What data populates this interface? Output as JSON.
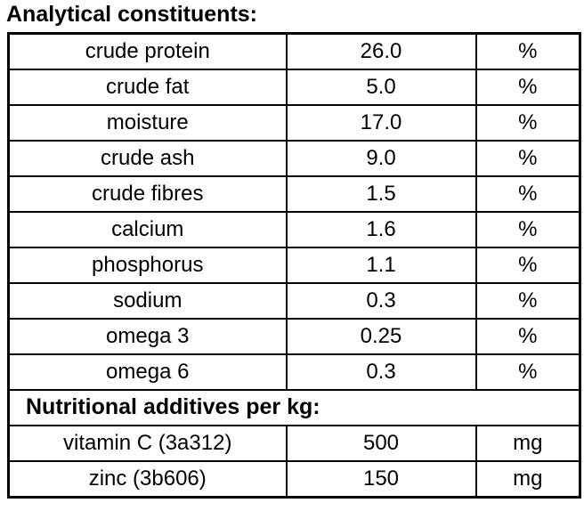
{
  "title": "Analytical constituents:",
  "colors": {
    "border": "#000000",
    "background": "#ffffff",
    "text": "#000000"
  },
  "table": {
    "constituents": [
      {
        "name": "crude protein",
        "value": "26.0",
        "unit": "%"
      },
      {
        "name": "crude fat",
        "value": "5.0",
        "unit": "%"
      },
      {
        "name": "moisture",
        "value": "17.0",
        "unit": "%"
      },
      {
        "name": "crude ash",
        "value": "9.0",
        "unit": "%"
      },
      {
        "name": "crude fibres",
        "value": "1.5",
        "unit": "%"
      },
      {
        "name": "calcium",
        "value": "1.6",
        "unit": "%"
      },
      {
        "name": "phosphorus",
        "value": "1.1",
        "unit": "%"
      },
      {
        "name": "sodium",
        "value": "0.3",
        "unit": "%"
      },
      {
        "name": "omega 3",
        "value": "0.25",
        "unit": "%"
      },
      {
        "name": "omega 6",
        "value": "0.3",
        "unit": "%"
      }
    ],
    "additives_header": "Nutritional additives per kg:",
    "additives": [
      {
        "name": "vitamin C (3a312)",
        "value": "500",
        "unit": "mg"
      },
      {
        "name": "zinc (3b606)",
        "value": "150",
        "unit": "mg"
      }
    ]
  }
}
